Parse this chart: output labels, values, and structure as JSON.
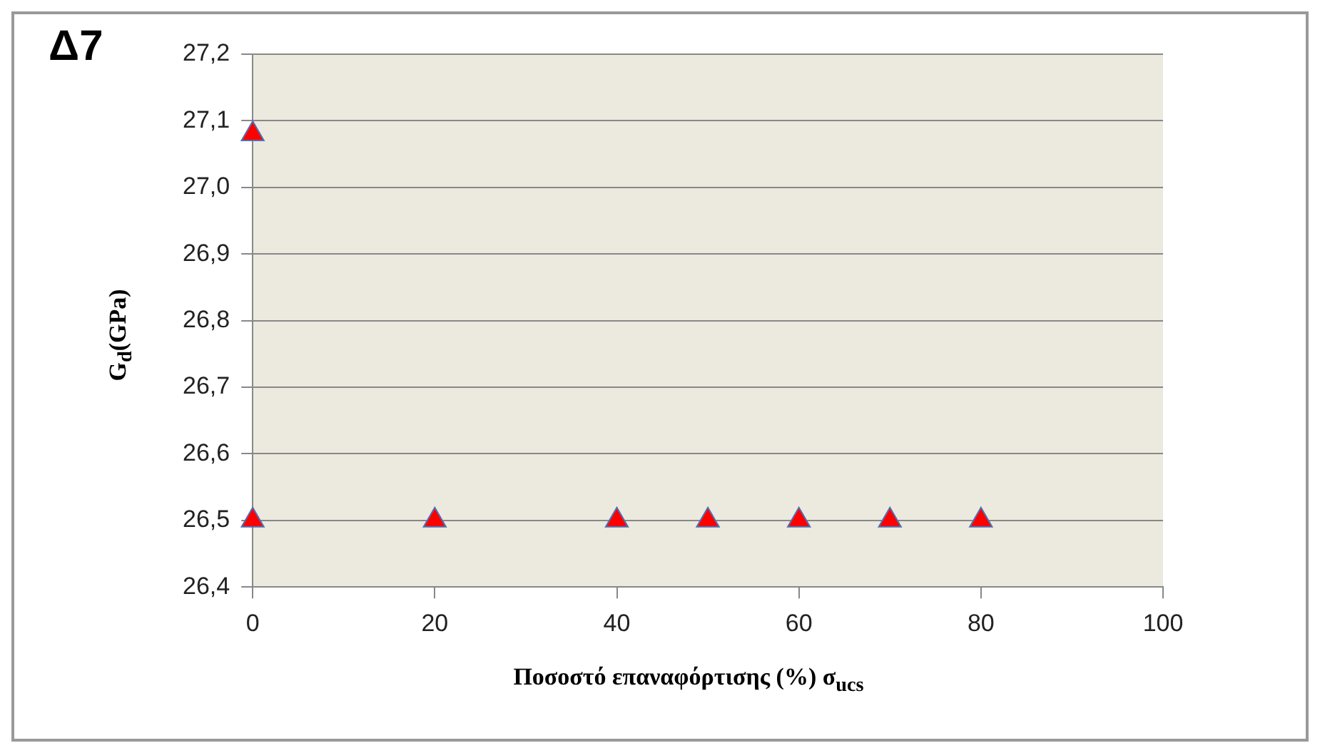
{
  "chart_data": {
    "type": "scatter",
    "title": "Δ7",
    "xlabel": "Ποσοστό επαναφόρτισης (%) σ$_{ucs}$",
    "ylabel": "G$_{d}$(GPa)",
    "x": [
      0,
      0,
      20,
      40,
      50,
      60,
      70,
      80
    ],
    "series": [
      {
        "color": "#ff0000",
        "values": [
          27.08,
          26.5,
          26.5,
          26.5,
          26.5,
          26.5,
          26.5,
          26.5
        ]
      }
    ],
    "xlim": [
      0,
      100
    ],
    "xticks": [
      0,
      20,
      40,
      60,
      80,
      100
    ],
    "ylim": [
      26.4,
      27.2
    ],
    "yticks": [
      {
        "value": 26.4,
        "label": "26,4"
      },
      {
        "value": 26.5,
        "label": "26,5"
      },
      {
        "value": 26.6,
        "label": "26,6"
      },
      {
        "value": 26.7,
        "label": "26,7"
      },
      {
        "value": 26.8,
        "label": "26,8"
      },
      {
        "value": 26.9,
        "label": "26,9"
      },
      {
        "value": 27.0,
        "label": "27,0"
      },
      {
        "value": 27.1,
        "label": "27,1"
      },
      {
        "value": 27.2,
        "label": "27,2"
      }
    ],
    "grid": "y",
    "marker": "triangle",
    "legend": false
  }
}
